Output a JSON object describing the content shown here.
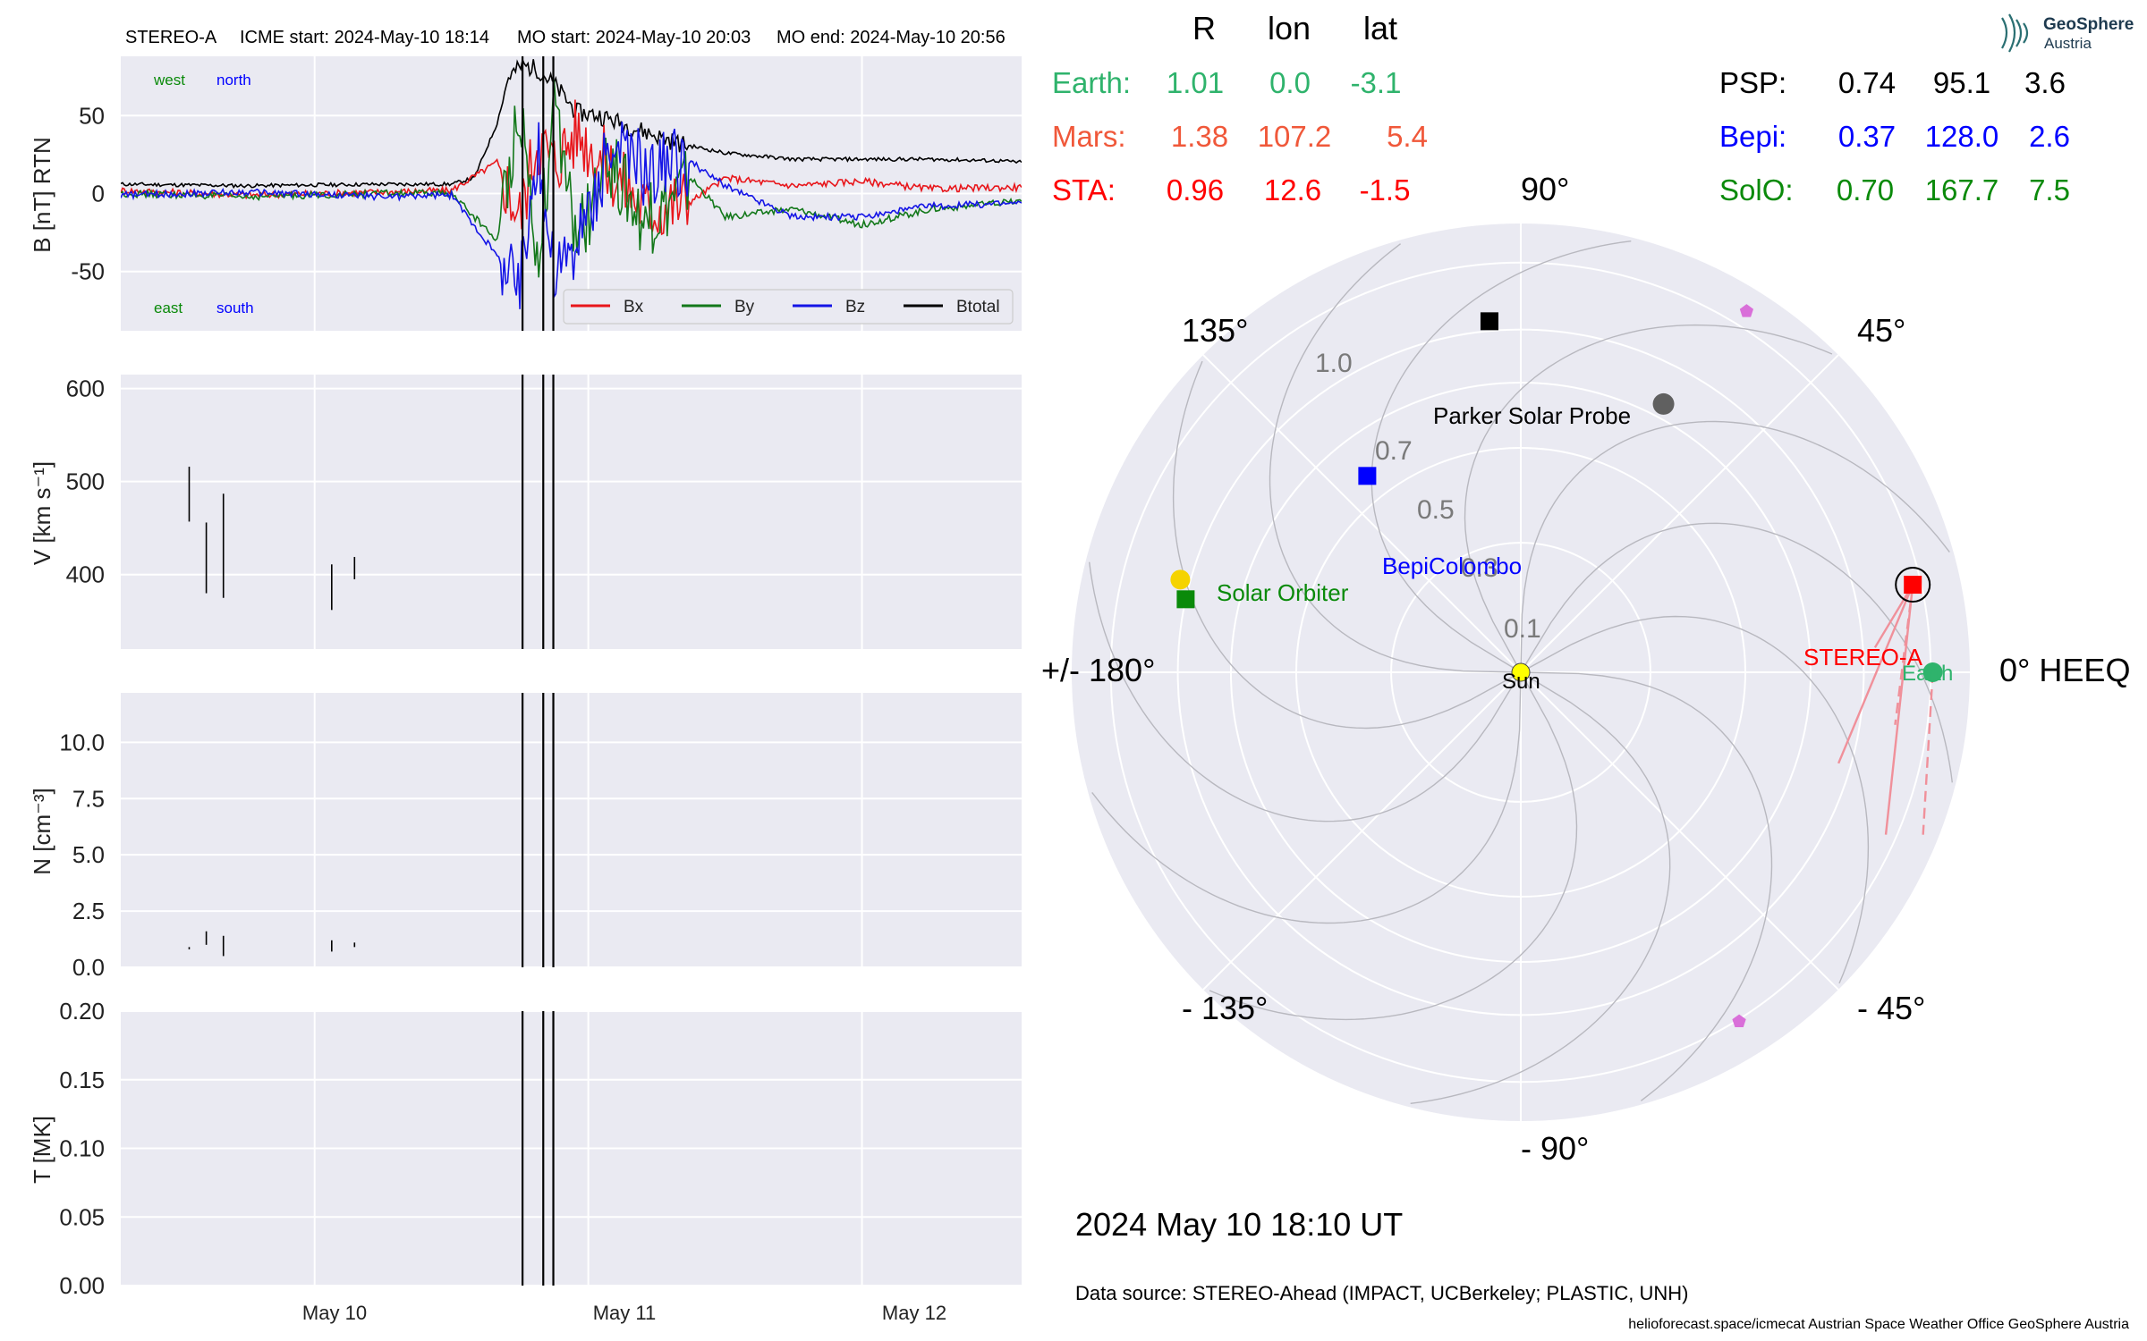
{
  "header": {
    "spacecraft": "STEREO-A",
    "icme_start": "ICME start: 2024-May-10 18:14",
    "mo_start": "MO start: 2024-May-10 20:03",
    "mo_end": "MO end: 2024-May-10 20:56"
  },
  "colors": {
    "bg": "#eaeaf2",
    "grid": "#ffffff",
    "bx": "#e8161b",
    "by": "#13781a",
    "bz": "#1414e6",
    "btotal": "#000000",
    "earth": "#2fb36c",
    "mars": "#f0583a",
    "sta": "#ff0000",
    "psp": "#000000",
    "bepi": "#0000ff",
    "solo": "#0a8a0a",
    "sun": "#ffff00",
    "pentagon": "#d96fd9",
    "gray_dot": "#606060",
    "fan": "#f0909a"
  },
  "logo": {
    "name": "GeoSphere",
    "sub": "Austria",
    "icon": "geosphere-logo-icon"
  },
  "table": {
    "headers": [
      "R",
      "lon",
      "lat"
    ],
    "left": [
      {
        "label": "Earth:",
        "R": "1.01",
        "lon": "0.0",
        "lat": "-3.1",
        "color": "#2fb36c"
      },
      {
        "label": "Mars:",
        "R": "1.38",
        "lon": "107.2",
        "lat": "5.4",
        "color": "#f0583a"
      },
      {
        "label": "STA:",
        "R": "0.96",
        "lon": "12.6",
        "lat": "-1.5",
        "color": "#ff0000"
      }
    ],
    "right": [
      {
        "label": "PSP:",
        "R": "0.74",
        "lon": "95.1",
        "lat": "3.6",
        "color": "#000000"
      },
      {
        "label": "Bepi:",
        "R": "0.37",
        "lon": "128.0",
        "lat": "2.6",
        "color": "#0000ff"
      },
      {
        "label": "SolO:",
        "R": "0.70",
        "lon": "167.7",
        "lat": "7.5",
        "color": "#0a8a0a"
      }
    ]
  },
  "polar": {
    "angle_labels": {
      "a0": "0° HEEQ",
      "a45": "45°",
      "a90": "90°",
      "a135": "135°",
      "a180": "+/- 180°",
      "am135": "- 135°",
      "am90": "- 90°",
      "am45": "- 45°"
    },
    "radial_labels": [
      "0.1",
      "0.3",
      "0.5",
      "0.7",
      "1.0"
    ],
    "radial_values": [
      0.1,
      0.3,
      0.5,
      0.7,
      1.0
    ],
    "bodies": [
      {
        "name": "Sun",
        "label": "Sun",
        "r": 0.0,
        "lon": 0,
        "marker": "circle",
        "color": "#ffff00"
      },
      {
        "name": "Earth",
        "label": "Earth",
        "r": 1.01,
        "lon": 0.0,
        "marker": "circle",
        "color": "#2fb36c"
      },
      {
        "name": "STEREO-A",
        "label": "STEREO-A",
        "r": 0.96,
        "lon": 12.6,
        "marker": "square",
        "color": "#ff0000"
      },
      {
        "name": "Parker Solar Probe",
        "label": "Parker Solar Probe",
        "r": 0.74,
        "lon": 95.1,
        "marker": "square",
        "color": "#000000"
      },
      {
        "name": "BepiColombo",
        "label": "BepiColombo",
        "r": 0.37,
        "lon": 128.0,
        "marker": "square",
        "color": "#0000ff"
      },
      {
        "name": "Solar Orbiter",
        "label": "Solar Orbiter",
        "r": 0.7,
        "lon": 167.7,
        "marker": "square",
        "color": "#0a8a0a"
      }
    ]
  },
  "date_label": "2024 May 10  18:10 UT",
  "data_source": "Data source: STEREO-Ahead (IMPACT, UCBerkeley; PLASTIC, UNH)",
  "footer": "helioforecast.space/icmecat   Austrian Space Weather Office   GeoSphere Austria",
  "chart_data": [
    {
      "type": "line",
      "name": "magnetic-field",
      "ylabel": "B [nT] RTN",
      "ylim": [
        -88,
        88
      ],
      "yticks": [
        -50,
        0,
        50
      ],
      "x_range": [
        "2024-05-09 07:00",
        "2024-05-12 14:00"
      ],
      "xtick_labels": [
        "May 10",
        "May 11",
        "May 12"
      ],
      "corner_labels": {
        "top_left": "west",
        "top_right": "north",
        "bottom_left": "east",
        "bottom_right": "south"
      },
      "legend": [
        "Bx",
        "By",
        "Bz",
        "Btotal"
      ],
      "legend_position": "lower right",
      "event_lines": [
        "2024-05-10 18:14",
        "2024-05-10 20:03",
        "2024-05-10 20:56"
      ],
      "series": [
        {
          "name": "Btotal",
          "points": [
            [
              "2024-05-09 07:00",
              6
            ],
            [
              "2024-05-09 18:00",
              5
            ],
            [
              "2024-05-10 06:00",
              6
            ],
            [
              "2024-05-10 12:00",
              6
            ],
            [
              "2024-05-10 14:00",
              10
            ],
            [
              "2024-05-10 16:00",
              45
            ],
            [
              "2024-05-10 17:00",
              75
            ],
            [
              "2024-05-10 18:14",
              82
            ],
            [
              "2024-05-10 19:30",
              80
            ],
            [
              "2024-05-10 21:00",
              70
            ],
            [
              "2024-05-10 23:00",
              52
            ],
            [
              "2024-05-11 01:00",
              50
            ],
            [
              "2024-05-11 04:00",
              42
            ],
            [
              "2024-05-11 08:00",
              32
            ],
            [
              "2024-05-11 12:00",
              26
            ],
            [
              "2024-05-11 18:00",
              22
            ],
            [
              "2024-05-12 00:00",
              22
            ],
            [
              "2024-05-12 06:00",
              22
            ],
            [
              "2024-05-12 12:00",
              21
            ],
            [
              "2024-05-12 14:00",
              20
            ]
          ]
        },
        {
          "name": "Bx",
          "points": [
            [
              "2024-05-09 07:00",
              2
            ],
            [
              "2024-05-09 18:00",
              -1
            ],
            [
              "2024-05-10 06:00",
              1
            ],
            [
              "2024-05-10 12:00",
              2
            ],
            [
              "2024-05-10 16:00",
              20
            ],
            [
              "2024-05-10 18:00",
              -15
            ],
            [
              "2024-05-10 19:30",
              35
            ],
            [
              "2024-05-10 21:00",
              20
            ],
            [
              "2024-05-10 23:00",
              40
            ],
            [
              "2024-05-11 02:00",
              15
            ],
            [
              "2024-05-11 05:00",
              -10
            ],
            [
              "2024-05-11 09:00",
              -5
            ],
            [
              "2024-05-11 12:00",
              10
            ],
            [
              "2024-05-11 18:00",
              5
            ],
            [
              "2024-05-12 00:00",
              8
            ],
            [
              "2024-05-12 06:00",
              3
            ],
            [
              "2024-05-12 14:00",
              4
            ]
          ]
        },
        {
          "name": "By",
          "points": [
            [
              "2024-05-09 07:00",
              0
            ],
            [
              "2024-05-09 18:00",
              -2
            ],
            [
              "2024-05-10 06:00",
              0
            ],
            [
              "2024-05-10 12:00",
              0
            ],
            [
              "2024-05-10 16:00",
              -30
            ],
            [
              "2024-05-10 18:00",
              60
            ],
            [
              "2024-05-10 19:30",
              -40
            ],
            [
              "2024-05-10 21:00",
              50
            ],
            [
              "2024-05-10 23:00",
              -30
            ],
            [
              "2024-05-11 02:00",
              20
            ],
            [
              "2024-05-11 05:00",
              -20
            ],
            [
              "2024-05-11 09:00",
              10
            ],
            [
              "2024-05-11 12:00",
              -15
            ],
            [
              "2024-05-11 18:00",
              -10
            ],
            [
              "2024-05-12 00:00",
              -20
            ],
            [
              "2024-05-12 06:00",
              -10
            ],
            [
              "2024-05-12 14:00",
              -5
            ]
          ]
        },
        {
          "name": "Bz",
          "points": [
            [
              "2024-05-09 07:00",
              -1
            ],
            [
              "2024-05-09 18:00",
              1
            ],
            [
              "2024-05-10 06:00",
              -2
            ],
            [
              "2024-05-10 12:00",
              -1
            ],
            [
              "2024-05-10 16:00",
              -40
            ],
            [
              "2024-05-10 18:00",
              -60
            ],
            [
              "2024-05-10 19:30",
              30
            ],
            [
              "2024-05-10 21:00",
              -50
            ],
            [
              "2024-05-10 23:00",
              -35
            ],
            [
              "2024-05-11 02:00",
              30
            ],
            [
              "2024-05-11 05:00",
              15
            ],
            [
              "2024-05-11 09:00",
              20
            ],
            [
              "2024-05-11 12:00",
              5
            ],
            [
              "2024-05-11 18:00",
              -15
            ],
            [
              "2024-05-12 00:00",
              -15
            ],
            [
              "2024-05-12 06:00",
              -8
            ],
            [
              "2024-05-12 14:00",
              -6
            ]
          ]
        }
      ]
    },
    {
      "type": "line",
      "name": "speed",
      "ylabel": "V [km s⁻¹]",
      "ylim": [
        320,
        615
      ],
      "yticks": [
        400,
        500,
        600
      ],
      "segments": [
        {
          "x": "2024-05-09 13:00",
          "y": [
            457,
            516
          ]
        },
        {
          "x": "2024-05-09 14:30",
          "y": [
            380,
            456
          ]
        },
        {
          "x": "2024-05-09 16:00",
          "y": [
            375,
            487
          ]
        },
        {
          "x": "2024-05-10 01:30",
          "y": [
            362,
            411
          ]
        },
        {
          "x": "2024-05-10 03:30",
          "y": [
            395,
            419
          ]
        }
      ],
      "event_lines": [
        "2024-05-10 18:14",
        "2024-05-10 20:03",
        "2024-05-10 20:56"
      ]
    },
    {
      "type": "line",
      "name": "density",
      "ylabel": "N [cm⁻³]",
      "ylim": [
        0,
        12.2
      ],
      "yticks": [
        0.0,
        2.5,
        5.0,
        7.5,
        10.0
      ],
      "segments": [
        {
          "x": "2024-05-09 13:00",
          "y": [
            0.8,
            0.9
          ]
        },
        {
          "x": "2024-05-09 14:30",
          "y": [
            1.0,
            1.6
          ]
        },
        {
          "x": "2024-05-09 16:00",
          "y": [
            0.5,
            1.4
          ]
        },
        {
          "x": "2024-05-10 01:30",
          "y": [
            0.7,
            1.2
          ]
        },
        {
          "x": "2024-05-10 03:30",
          "y": [
            0.9,
            1.1
          ]
        }
      ],
      "event_lines": [
        "2024-05-10 18:14",
        "2024-05-10 20:03",
        "2024-05-10 20:56"
      ]
    },
    {
      "type": "line",
      "name": "temperature",
      "ylabel": "T [MK]",
      "ylim": [
        0,
        0.2
      ],
      "yticks": [
        0.0,
        0.05,
        0.1,
        0.15,
        0.2
      ],
      "series": [],
      "event_lines": [
        "2024-05-10 18:14",
        "2024-05-10 20:03",
        "2024-05-10 20:56"
      ]
    }
  ]
}
